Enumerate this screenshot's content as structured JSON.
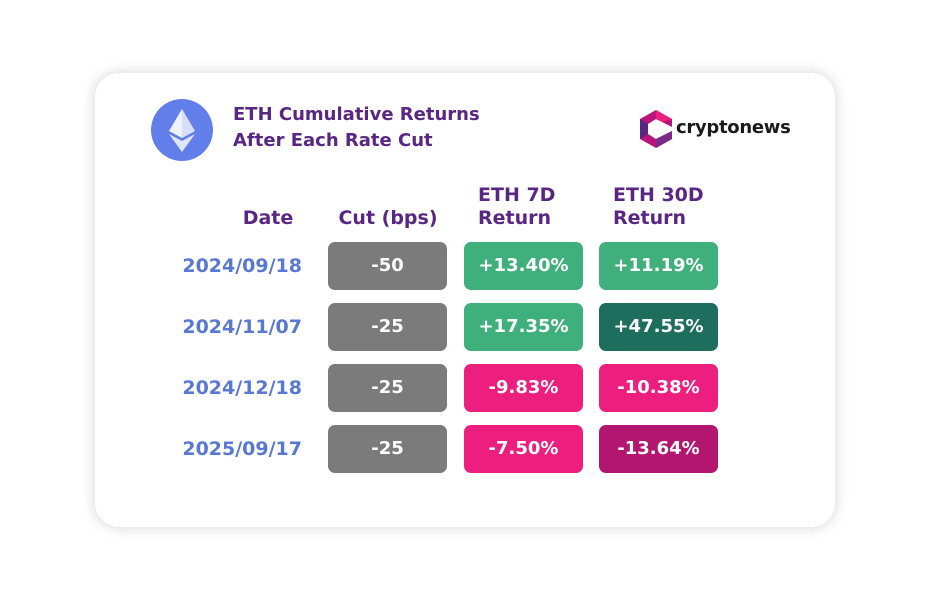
{
  "header": {
    "title": [
      "ETH Cumulative Returns",
      "After Each Rate Cut"
    ],
    "brand": "cryptonews"
  },
  "table": {
    "headers": [
      [
        "Date"
      ],
      [
        "Cut (bps)"
      ],
      [
        "ETH 7D",
        "Return"
      ],
      [
        "ETH 30D",
        "Return"
      ]
    ],
    "rows": [
      {
        "date": "2024/09/18",
        "cells": [
          "-50",
          "+13.40%",
          "+11.19%"
        ],
        "colors": [
          "#7b7b7b",
          "#3fb07b",
          "#3fb07b"
        ]
      },
      {
        "date": "2024/11/07",
        "cells": [
          "-25",
          "+17.35%",
          "+47.55%"
        ],
        "colors": [
          "#7b7b7b",
          "#3fb07b",
          "#1e6e5e"
        ]
      },
      {
        "date": "2024/12/18",
        "cells": [
          "-25",
          "-9.83%",
          "-10.38%"
        ],
        "colors": [
          "#7b7b7b",
          "#ec1f7e",
          "#ec1f7e"
        ]
      },
      {
        "date": "2025/09/17",
        "cells": [
          "-25",
          "-7.50%",
          "-13.64%"
        ],
        "colors": [
          "#7b7b7b",
          "#ec1f7e",
          "#b3166e"
        ]
      }
    ]
  }
}
